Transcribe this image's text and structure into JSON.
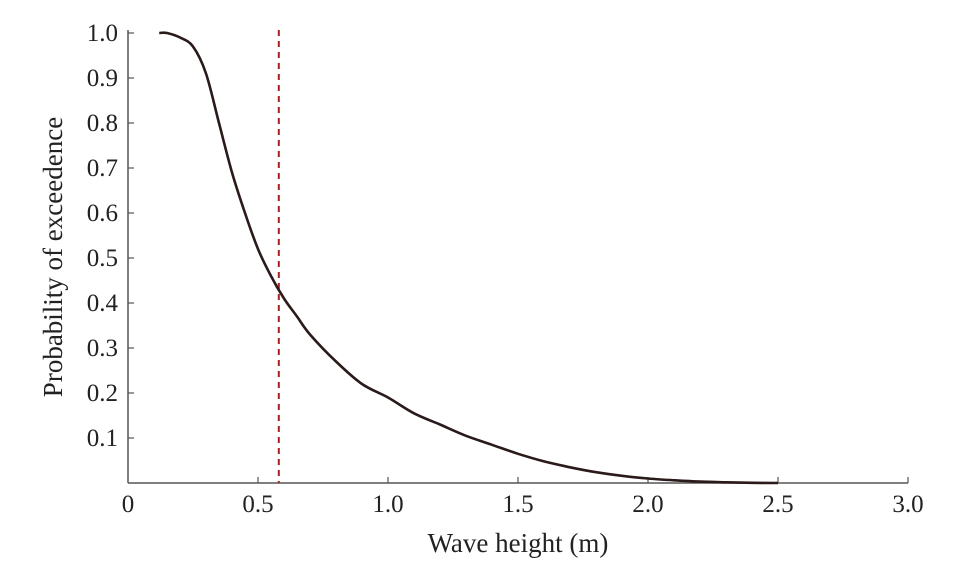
{
  "chart_data": {
    "type": "line",
    "title": "",
    "xlabel": "Wave height (m)",
    "ylabel": "Probability of exceedence",
    "xlim": [
      0,
      3.0
    ],
    "ylim": [
      0,
      1.0
    ],
    "x_ticks": [
      0,
      0.5,
      1.0,
      1.5,
      2.0,
      2.5,
      3.0
    ],
    "x_tick_labels": [
      "0",
      "0.5",
      "1.0",
      "1.5",
      "2.0",
      "2.5",
      "3.0"
    ],
    "y_ticks": [
      0.1,
      0.2,
      0.3,
      0.4,
      0.5,
      0.6,
      0.7,
      0.8,
      0.9,
      1.0
    ],
    "y_tick_labels": [
      "0.1",
      "0.2",
      "0.3",
      "0.4",
      "0.5",
      "0.6",
      "0.7",
      "0.8",
      "0.9",
      "1.0"
    ],
    "grid": false,
    "legend": "none",
    "series": [
      {
        "color": "#2a1a1a",
        "x": [
          0.12,
          0.15,
          0.2,
          0.25,
          0.3,
          0.35,
          0.4,
          0.45,
          0.5,
          0.55,
          0.6,
          0.65,
          0.7,
          0.8,
          0.9,
          1.0,
          1.1,
          1.2,
          1.3,
          1.4,
          1.5,
          1.6,
          1.7,
          1.8,
          1.9,
          2.0,
          2.1,
          2.2,
          2.3,
          2.4,
          2.5
        ],
        "y": [
          1.0,
          1.0,
          0.99,
          0.97,
          0.91,
          0.8,
          0.69,
          0.6,
          0.52,
          0.46,
          0.41,
          0.37,
          0.33,
          0.27,
          0.22,
          0.19,
          0.155,
          0.13,
          0.105,
          0.085,
          0.065,
          0.048,
          0.035,
          0.024,
          0.016,
          0.01,
          0.006,
          0.003,
          0.0015,
          0.0005,
          0.0
        ]
      }
    ],
    "vlines": [
      {
        "x": 0.58,
        "style": "dashed",
        "color": "#a82020"
      }
    ]
  }
}
